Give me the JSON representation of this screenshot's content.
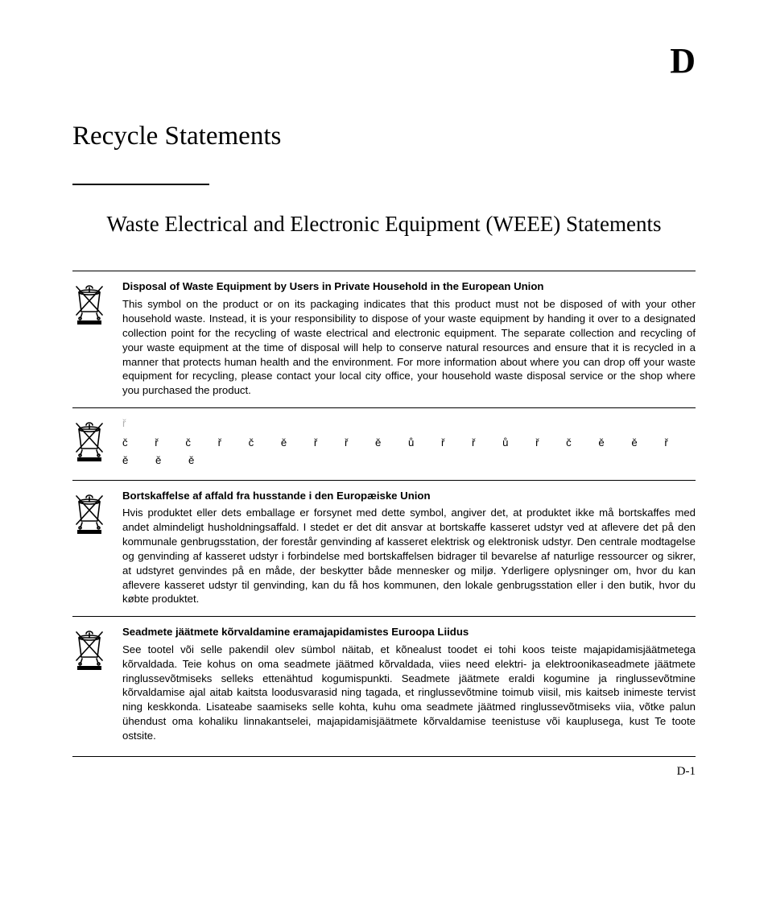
{
  "appendix_letter": "D",
  "main_title": "Recycle Statements",
  "sub_title": "Waste Electrical and Electronic Equipment (WEEE) Statements",
  "page_number": "D-1",
  "statements": [
    {
      "heading": "Disposal of Waste Equipment by Users in Private Household in the European Union",
      "body": "This symbol on the product or on its packaging indicates that this product must not be disposed of with your other household waste.  Instead, it is your responsibility to dispose of your waste equipment by handing it over to a designated collection point for the recycling of waste electrical and electronic equipment.  The separate collection and recycling of your waste equipment at the time of disposal will help to conserve natural resources and ensure that it is recycled in a manner that protects human health and the environment.  For more information about where you can drop off your waste equipment for recycling, please contact your local city office, your household waste disposal service or the shop where you purchased the product."
    },
    {
      "heading": "ř",
      "heading_light": true,
      "body_sparse": true,
      "body": "č ř č ř č ě ř ř ě ů ř ř ů ř č ě ě ř ě ě ě"
    },
    {
      "heading": "Bortskaffelse af affald fra husstande i den Europæiske Union",
      "body": "Hvis produktet eller dets emballage er forsynet med dette symbol, angiver det, at produktet ikke må bortskaffes med andet almindeligt husholdningsaffald. I stedet er det dit ansvar at bortskaffe kasseret udstyr ved at aflevere det på den kommunale genbrugsstation, der forestår genvinding af kasseret elektrisk og elektronisk udstyr.  Den centrale modtagelse og genvinding af kasseret udstyr i forbindelse med bortskaffelsen bidrager til bevarelse af naturlige ressourcer og sikrer, at udstyret genvindes på en måde, der beskytter både mennesker og miljø. Yderligere oplysninger om, hvor du kan aflevere kasseret udstyr til genvinding, kan du få hos kommunen, den lokale genbrugsstation eller i den butik, hvor du købte produktet."
    },
    {
      "heading": "Seadmete jäätmete kõrvaldamine eramajapidamistes Euroopa Liidus",
      "body": "See tootel või selle pakendil olev sümbol näitab, et kõnealust toodet ei tohi koos teiste majapidamisjäätmetega kõrvaldada. Teie kohus on oma seadmete jäätmed kõrvaldada, viies need elektri- ja elektroonikaseadmete jäätmete ringlussevõtmiseks selleks ettenähtud kogumispunkti. Seadmete jäätmete eraldi kogumine ja ringlussevõtmine kõrvaldamise ajal aitab kaitsta loodusvarasid ning tagada, et ringlussevõtmine toimub viisil, mis kaitseb inimeste tervist ning keskkonda. Lisateabe saamiseks selle kohta, kuhu oma seadmete jäätmed ringlussevõtmiseks viia, võtke palun ühendust oma kohaliku linnakantselei, majapidamisjäätmete kõrvaldamise teenistuse või kauplusega, kust Te toote ostsite."
    }
  ],
  "icon": {
    "stroke": "#000000",
    "fill_bar": "#000000"
  }
}
